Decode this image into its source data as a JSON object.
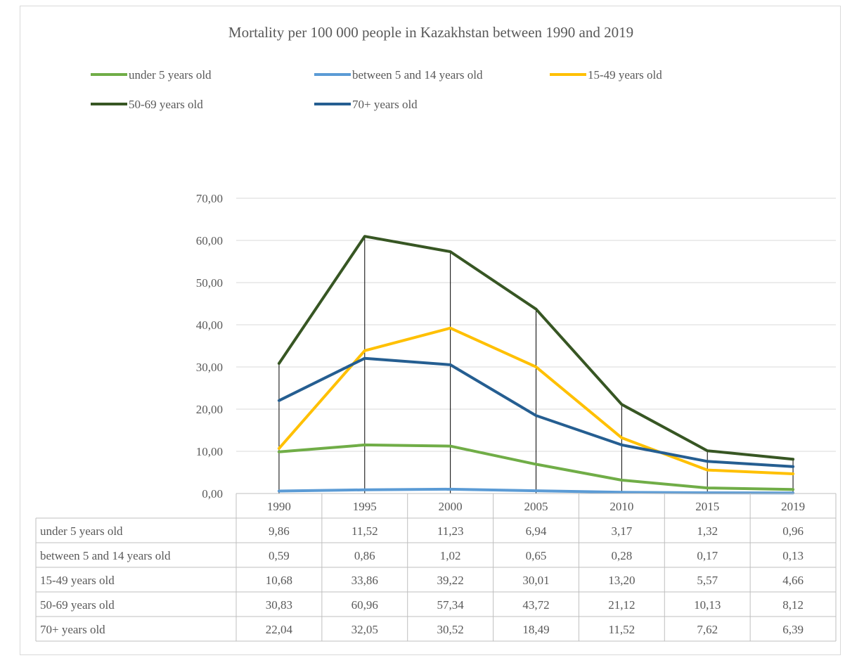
{
  "chart_data": {
    "type": "line",
    "title": "Mortality per 100 000 people in Kazakhstan between 1990 and 2019",
    "categories": [
      "1990",
      "1995",
      "2000",
      "2005",
      "2010",
      "2015",
      "2019"
    ],
    "ylim": [
      0,
      70
    ],
    "yticks": [
      "0,00",
      "10,00",
      "20,00",
      "30,00",
      "40,00",
      "50,00",
      "60,00",
      "70,00"
    ],
    "grid": true,
    "legend_position": "top",
    "drop_lines": true,
    "series": [
      {
        "name": "under 5 years old",
        "color": "#70ad47",
        "values": [
          9.86,
          11.52,
          11.23,
          6.94,
          3.17,
          1.32,
          0.96
        ],
        "labels": [
          "9,86",
          "11,52",
          "11,23",
          "6,94",
          "3,17",
          "1,32",
          "0,96"
        ]
      },
      {
        "name": "between 5 and 14 years old",
        "color": "#5b9bd5",
        "values": [
          0.59,
          0.86,
          1.02,
          0.65,
          0.28,
          0.17,
          0.13
        ],
        "labels": [
          "0,59",
          "0,86",
          "1,02",
          "0,65",
          "0,28",
          "0,17",
          "0,13"
        ]
      },
      {
        "name": "15-49 years old",
        "color": "#ffc000",
        "values": [
          10.68,
          33.86,
          39.22,
          30.01,
          13.2,
          5.57,
          4.66
        ],
        "labels": [
          "10,68",
          "33,86",
          "39,22",
          "30,01",
          "13,20",
          "5,57",
          "4,66"
        ]
      },
      {
        "name": "50-69 years old",
        "color": "#375623",
        "values": [
          30.83,
          60.96,
          57.34,
          43.72,
          21.12,
          10.13,
          8.12
        ],
        "labels": [
          "30,83",
          "60,96",
          "57,34",
          "43,72",
          "21,12",
          "10,13",
          "8,12"
        ]
      },
      {
        "name": "70+ years old",
        "color": "#255e91",
        "values": [
          22.04,
          32.05,
          30.52,
          18.49,
          11.52,
          7.62,
          6.39
        ],
        "labels": [
          "22,04",
          "32,05",
          "30,52",
          "18,49",
          "11,52",
          "7,62",
          "6,39"
        ]
      }
    ]
  }
}
